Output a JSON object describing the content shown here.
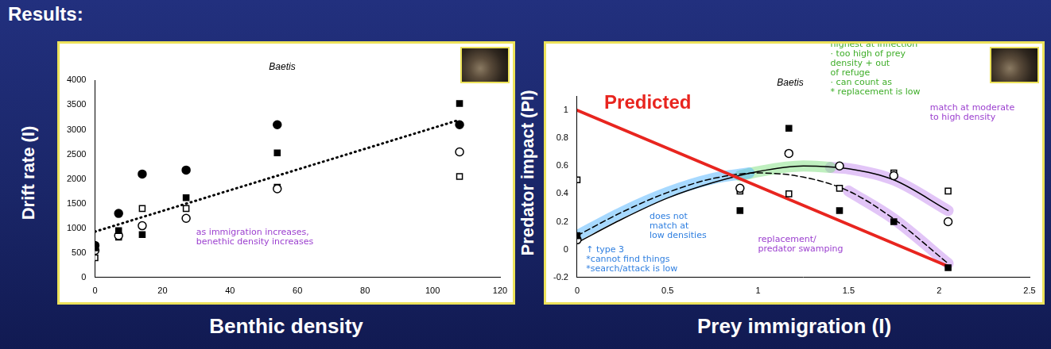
{
  "slide_title": "Results:",
  "chart_data": [
    {
      "type": "scatter",
      "title": "Baetis",
      "x_label": "Benthic density",
      "y_label": "Drift rate (I)",
      "xlim": [
        0,
        120
      ],
      "xticks": [
        0,
        20,
        40,
        60,
        80,
        100,
        120
      ],
      "ylim": [
        0,
        4000
      ],
      "yticks": [
        0,
        500,
        1000,
        1500,
        2000,
        2500,
        3000,
        3500,
        4000
      ],
      "grid": false,
      "series": [
        {
          "marker": "circle",
          "color": "#000000",
          "x": [
            0,
            7,
            14,
            27,
            54,
            108
          ],
          "values": [
            650,
            1300,
            2100,
            2180,
            3100,
            3100
          ]
        },
        {
          "marker": "square",
          "color": "#000000",
          "x": [
            0,
            7,
            14,
            27,
            54,
            108
          ],
          "values": [
            600,
            950,
            870,
            1620,
            2530,
            3530
          ]
        },
        {
          "marker": "circle-open",
          "color": "#000000",
          "x": [
            0,
            7,
            14,
            27,
            54,
            108
          ],
          "values": [
            550,
            850,
            1050,
            1200,
            1800,
            2550
          ]
        },
        {
          "marker": "square-open",
          "color": "#000000",
          "x": [
            0,
            7,
            14,
            27,
            54,
            108
          ],
          "values": [
            400,
            820,
            1400,
            1400,
            1830,
            2050
          ]
        },
        {
          "type": "line",
          "line_style": "dotted",
          "marker": "none",
          "color": "#000000",
          "x": [
            0,
            108
          ],
          "values": [
            930,
            3200
          ]
        }
      ],
      "annotations": [
        {
          "text": [
            "as immigration increases,",
            "benethic density increases"
          ],
          "x": 30,
          "y": 1000,
          "color": "#9b3fcf"
        }
      ]
    },
    {
      "type": "scatter",
      "title": "Baetis",
      "x_label": "Prey immigration (I)",
      "y_label": "Predator impact (PI)",
      "xlim": [
        0,
        2.5
      ],
      "xticks": [
        0,
        0.5,
        1,
        1.5,
        2,
        2.5
      ],
      "ylim": [
        -0.2,
        1.1
      ],
      "yticks": [
        -0.2,
        0,
        0.2,
        0.4,
        0.6,
        0.8,
        1
      ],
      "grid": false,
      "series": [
        {
          "type": "line",
          "line_style": "highlight",
          "marker": "none",
          "color": "#4fb3ff",
          "x": [
            0,
            0.25,
            0.5,
            0.75,
            0.95
          ],
          "values": [
            0.1,
            0.27,
            0.41,
            0.51,
            0.55
          ]
        },
        {
          "type": "line",
          "line_style": "highlight",
          "marker": "none",
          "color": "#7fe07f",
          "x": [
            0.9,
            1,
            1.25,
            1.4
          ],
          "values": [
            0.53,
            0.56,
            0.6,
            0.59
          ]
        },
        {
          "type": "line",
          "line_style": "highlight",
          "marker": "none",
          "color": "#c58cf0",
          "x": [
            1.4,
            1.5,
            1.75,
            2.05
          ],
          "values": [
            0.59,
            0.58,
            0.5,
            0.28
          ]
        },
        {
          "type": "line",
          "line_style": "highlight",
          "marker": "none",
          "color": "#c58cf0",
          "x": [
            1.5,
            1.75,
            2.05
          ],
          "values": [
            0.42,
            0.22,
            -0.1
          ]
        },
        {
          "type": "line",
          "line_style": "thick",
          "marker": "none",
          "color": "#e8251f",
          "x": [
            0,
            2.05
          ],
          "values": [
            1,
            -0.12
          ]
        },
        {
          "type": "line",
          "line_style": "solid",
          "marker": "none",
          "color": "#000000",
          "x": [
            0,
            0.25,
            0.5,
            0.75,
            1,
            1.25,
            1.5,
            1.75,
            2.05
          ],
          "values": [
            0.05,
            0.22,
            0.37,
            0.48,
            0.56,
            0.6,
            0.58,
            0.5,
            0.28
          ]
        },
        {
          "type": "line",
          "line_style": "dashed",
          "marker": "none",
          "color": "#000000",
          "x": [
            0,
            0.25,
            0.5,
            0.75,
            1,
            1.25,
            1.5,
            1.75,
            2.05
          ],
          "values": [
            0.1,
            0.27,
            0.41,
            0.51,
            0.55,
            0.52,
            0.42,
            0.22,
            -0.1
          ]
        },
        {
          "marker": "square",
          "color": "#000000",
          "x": [
            0,
            0.9,
            1.17,
            1.45,
            1.75,
            2.05
          ],
          "values": [
            0.1,
            0.28,
            0.87,
            0.28,
            0.2,
            -0.13
          ]
        },
        {
          "marker": "circle-open",
          "color": "#000000",
          "x": [
            0,
            0.9,
            1.17,
            1.45,
            1.75,
            2.05
          ],
          "values": [
            0.07,
            0.44,
            0.69,
            0.6,
            0.53,
            0.2
          ]
        },
        {
          "marker": "square-open",
          "color": "#000000",
          "x": [
            0,
            0.9,
            1.17,
            1.45,
            1.75,
            2.05
          ],
          "values": [
            0.5,
            0.42,
            0.4,
            0.44,
            0.55,
            0.42
          ]
        }
      ],
      "annotations": [
        {
          "text": [
            "Predicted"
          ],
          "x": 0.15,
          "y": 1.12,
          "color": "#e8251f"
        },
        {
          "text": [
            "highest at inflection",
            "· too high of prey",
            "density + out",
            "of refuge",
            "· can count as",
            "* replacement is low"
          ],
          "x": 1.4,
          "y": 1.5,
          "color": "#3fae2a"
        },
        {
          "text": [
            "match at moderate",
            "to high density"
          ],
          "x": 1.95,
          "y": 1.05,
          "color": "#9b3fcf"
        },
        {
          "text": [
            "does not",
            "match at",
            "low densities"
          ],
          "x": 0.4,
          "y": 0.27,
          "color": "#2f7fe0"
        },
        {
          "text": [
            "↑ type 3",
            "*cannot find things",
            "*search/attack is low"
          ],
          "x": 0.05,
          "y": 0.03,
          "color": "#2f7fe0"
        },
        {
          "text": [
            "replacement/",
            "predator swamping"
          ],
          "x": 1.0,
          "y": 0.1,
          "color": "#9b3fcf"
        }
      ]
    }
  ]
}
